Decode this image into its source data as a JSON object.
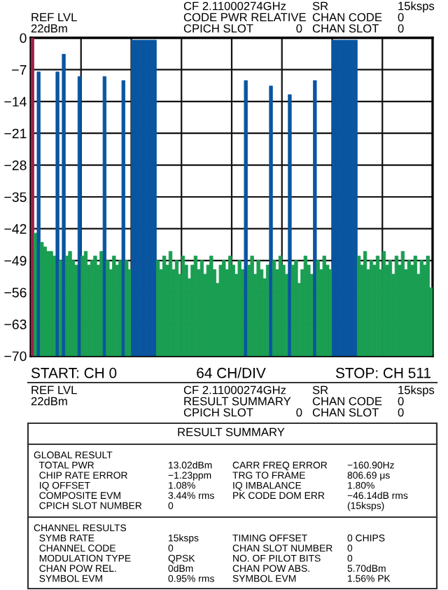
{
  "chart_data": {
    "type": "bar",
    "categories": [
      null,
      null,
      null,
      null,
      null,
      null,
      null,
      null,
      null,
      null,
      null,
      null,
      null,
      null,
      null,
      null,
      null,
      null,
      null,
      null,
      null,
      null,
      null,
      null,
      null,
      null,
      null,
      null,
      null,
      null,
      null,
      null,
      null,
      null,
      null,
      null,
      null,
      null,
      null,
      null,
      null,
      null,
      null,
      null,
      null,
      null,
      null,
      null,
      null,
      null,
      null,
      null,
      null,
      null,
      null,
      null,
      null,
      null,
      null,
      null,
      null,
      null,
      null,
      null,
      null,
      null,
      null,
      null,
      null,
      null,
      null,
      null,
      null,
      null,
      null,
      null,
      null,
      null,
      null,
      null,
      null,
      null,
      null,
      null,
      null,
      null,
      null,
      null,
      null,
      null,
      null,
      null,
      null,
      null,
      null,
      null,
      null,
      null,
      null,
      null,
      null,
      null,
      null,
      null,
      null,
      null,
      null,
      null,
      null,
      null,
      null,
      null,
      null,
      null,
      null,
      null,
      null,
      null,
      null,
      null,
      null,
      null,
      null,
      null,
      null,
      null,
      null,
      null
    ],
    "base": [
      -70,
      -70,
      -70,
      -70,
      -70,
      -70,
      -70,
      -70,
      -70,
      -70,
      -70,
      -70,
      -70,
      -70,
      -70,
      -70,
      -70,
      -70,
      -70,
      -70,
      -70,
      -70,
      -70,
      -70,
      -70,
      -70,
      -70,
      -70,
      -70,
      -70,
      -70,
      -70,
      -70,
      -70,
      -70,
      -70,
      -70,
      -70,
      -70,
      -70,
      -70,
      -70,
      -70,
      -70,
      -70,
      -70,
      -70,
      -70,
      -70,
      -70,
      -70,
      -70,
      -70,
      -70,
      -70,
      -70,
      -70,
      -70,
      -70,
      -70,
      -70,
      -70,
      -70,
      -70,
      -70,
      -70,
      -70,
      -70,
      -70,
      -70,
      -70,
      -70,
      -70,
      -70,
      -70,
      -70,
      -70,
      -70,
      -70,
      -70,
      -70,
      -70,
      -70,
      -70,
      -70,
      -70,
      -70,
      -70,
      -70,
      -70,
      -70,
      -70,
      -70,
      -70,
      -70,
      -70,
      -70,
      -70,
      -70,
      -70,
      -70,
      -70,
      -70,
      -70,
      -70,
      -70,
      -70,
      -70,
      -70,
      -70,
      -70,
      -70,
      -70,
      -70,
      -70,
      -70,
      -70,
      -70,
      -70,
      -70,
      -70,
      -70,
      -70,
      -70,
      -70,
      -70,
      -70,
      -70
    ],
    "values": [
      70,
      27,
      62.5,
      25,
      24,
      23,
      23,
      22,
      62.5,
      21,
      66.4,
      22,
      23,
      21,
      20,
      61.5,
      22,
      23,
      20,
      21,
      22,
      20,
      23,
      61.5,
      21,
      19,
      22,
      20,
      21,
      60.6,
      21,
      19,
      69.5,
      69.5,
      69.5,
      69.5,
      69.5,
      69.5,
      69.5,
      69.5,
      21,
      19,
      22,
      20,
      23,
      19,
      21,
      18,
      22,
      20,
      17,
      20,
      22,
      19,
      21,
      18,
      20,
      22,
      19,
      16,
      20,
      21,
      19,
      22,
      20,
      18,
      21,
      19,
      60.6,
      20,
      22,
      18,
      21,
      19,
      17,
      20,
      59.4,
      21,
      19,
      22,
      20,
      18,
      57.5,
      20,
      21,
      16,
      19,
      22,
      20,
      18,
      60.6,
      21,
      19,
      22,
      20,
      19,
      69.5,
      69.5,
      69.5,
      69.5,
      69.5,
      69.5,
      69.5,
      69.5,
      22,
      20,
      23,
      19,
      21,
      20,
      22,
      19,
      23,
      20,
      21,
      18,
      22,
      20,
      23,
      19,
      21,
      20,
      22,
      18,
      21,
      20,
      22,
      15
    ],
    "colors": [
      "#a02048",
      "#1a9e52",
      "#0a55a0",
      "#1a9e52",
      "#1a9e52",
      "#1a9e52",
      "#1a9e52",
      "#1a9e52",
      "#0a55a0",
      "#1a9e52",
      "#0a55a0",
      "#1a9e52",
      "#1a9e52",
      "#1a9e52",
      "#1a9e52",
      "#0a55a0",
      "#1a9e52",
      "#1a9e52",
      "#1a9e52",
      "#1a9e52",
      "#1a9e52",
      "#1a9e52",
      "#1a9e52",
      "#0a55a0",
      "#1a9e52",
      "#1a9e52",
      "#1a9e52",
      "#1a9e52",
      "#1a9e52",
      "#0a55a0",
      "#1a9e52",
      "#1a9e52",
      "#0a55a0",
      "#0a55a0",
      "#0a55a0",
      "#0a55a0",
      "#0a55a0",
      "#0a55a0",
      "#0a55a0",
      "#0a55a0",
      "#1a9e52",
      "#1a9e52",
      "#1a9e52",
      "#1a9e52",
      "#1a9e52",
      "#1a9e52",
      "#1a9e52",
      "#1a9e52",
      "#1a9e52",
      "#1a9e52",
      "#1a9e52",
      "#1a9e52",
      "#1a9e52",
      "#1a9e52",
      "#1a9e52",
      "#1a9e52",
      "#1a9e52",
      "#1a9e52",
      "#1a9e52",
      "#1a9e52",
      "#1a9e52",
      "#1a9e52",
      "#1a9e52",
      "#1a9e52",
      "#1a9e52",
      "#1a9e52",
      "#1a9e52",
      "#1a9e52",
      "#0a55a0",
      "#1a9e52",
      "#1a9e52",
      "#1a9e52",
      "#1a9e52",
      "#1a9e52",
      "#1a9e52",
      "#1a9e52",
      "#0a55a0",
      "#1a9e52",
      "#1a9e52",
      "#1a9e52",
      "#1a9e52",
      "#1a9e52",
      "#0a55a0",
      "#1a9e52",
      "#1a9e52",
      "#1a9e52",
      "#1a9e52",
      "#1a9e52",
      "#1a9e52",
      "#1a9e52",
      "#0a55a0",
      "#1a9e52",
      "#1a9e52",
      "#1a9e52",
      "#1a9e52",
      "#1a9e52",
      "#0a55a0",
      "#0a55a0",
      "#0a55a0",
      "#0a55a0",
      "#0a55a0",
      "#0a55a0",
      "#0a55a0",
      "#0a55a0",
      "#1a9e52",
      "#1a9e52",
      "#1a9e52",
      "#1a9e52",
      "#1a9e52",
      "#1a9e52",
      "#1a9e52",
      "#1a9e52",
      "#1a9e52",
      "#1a9e52",
      "#1a9e52",
      "#1a9e52",
      "#1a9e52",
      "#1a9e52",
      "#1a9e52",
      "#1a9e52",
      "#1a9e52",
      "#1a9e52",
      "#1a9e52",
      "#1a9e52",
      "#1a9e52",
      "#1a9e52",
      "#1a9e52",
      "#1a9e52"
    ],
    "ylim": [
      -70,
      0
    ],
    "yticks": [
      {
        "value": -70,
        "label": "−70"
      },
      {
        "value": -63,
        "label": "−63"
      },
      {
        "value": -56,
        "label": "−56"
      },
      {
        "value": -49,
        "label": "−49"
      },
      {
        "value": -42,
        "label": "−42"
      },
      {
        "value": -35,
        "label": "−35"
      },
      {
        "value": -28,
        "label": "−28"
      },
      {
        "value": -21,
        "label": "−21"
      },
      {
        "value": -14,
        "label": "−14"
      },
      {
        "value": -7,
        "label": "−7"
      },
      0
    ],
    "grid": true,
    "tick_labels": "y",
    "annotations": [
      "REF LVL",
      "22dBm",
      "CF 2.11000274GHz",
      "CODE PWR RELATIVE",
      "CPICH SLOT",
      "0",
      "SR",
      "CHAN CODE",
      "CHAN SLOT",
      "15ksps",
      "0",
      "0",
      "START: CH 0",
      "64 CH/DIV",
      "STOP: CH 511",
      "REF LVL",
      "22dBm",
      "CF 2.11000274GHz",
      "RESULT SUMMARY",
      "CPICH SLOT",
      "0",
      "SR",
      "CHAN CODE",
      "CHAN SLOT",
      "15ksps",
      "0",
      "0",
      "RESULT SUMMARY",
      "GLOBAL RESULT\n  TOTAL PWR\n  CHIP RATE ERROR\n  IQ OFFSET\n  COMPOSITE EVM\n  CPICH SLOT NUMBER",
      "\n13.02dBm\n−1.23ppm\n1.08%\n3.44% rms\n0",
      "\nCARR FREQ ERROR\nTRG TO FRAME\nIQ IMBALANCE\nPK CODE DOM ERR",
      "\n−160.90Hz\n806.69 μs\n1.80%\n−46.14dB rms\n(15ksps)",
      "CHANNEL RESULTS\n  SYMB RATE\n  CHANNEL CODE\n  MODULATION TYPE\n  CHAN POW REL.\n  SYMBOL EVM",
      "\n15ksps\n0\nQPSK\n0dBm\n0.95% rms",
      "\nTIMING OFFSET\nCHAN SLOT NUMBER\nNO. OF PILOT BITS\nCHAN POW ABS.\nSYMBOL EVM",
      "\n0 CHIPS\n0\n0\n5.70dBm\n1.56% PK"
    ]
  }
}
